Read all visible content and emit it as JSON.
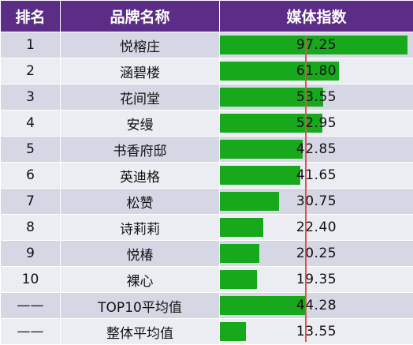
{
  "chart_data": {
    "type": "table",
    "columns": [
      "排名",
      "品牌名称",
      "媒体指数"
    ],
    "rows": [
      {
        "rank": "1",
        "brand": "悦榕庄",
        "value": 97.25,
        "label": "97.25"
      },
      {
        "rank": "2",
        "brand": "涵碧楼",
        "value": 61.8,
        "label": "61.80"
      },
      {
        "rank": "3",
        "brand": "花间堂",
        "value": 53.55,
        "label": "53.55"
      },
      {
        "rank": "4",
        "brand": "安缦",
        "value": 52.95,
        "label": "52.95"
      },
      {
        "rank": "5",
        "brand": "书香府邸",
        "value": 42.85,
        "label": "42.85"
      },
      {
        "rank": "6",
        "brand": "英迪格",
        "value": 41.65,
        "label": "41.65"
      },
      {
        "rank": "7",
        "brand": "松赞",
        "value": 30.75,
        "label": "30.75"
      },
      {
        "rank": "8",
        "brand": "诗莉莉",
        "value": 22.4,
        "label": "22.40"
      },
      {
        "rank": "9",
        "brand": "悦椿",
        "value": 20.25,
        "label": "20.25"
      },
      {
        "rank": "10",
        "brand": "裸心",
        "value": 19.35,
        "label": "19.35"
      },
      {
        "rank": "——",
        "brand": "TOP10平均值",
        "value": 44.28,
        "label": "44.28"
      },
      {
        "rank": "——",
        "brand": "整体平均值",
        "value": 13.55,
        "label": "13.55"
      }
    ],
    "bar_max": 100,
    "reference_value": 44.28,
    "colors": {
      "header_bg": "#5b2d86",
      "bar": "#17a81c",
      "row_odd": "#d6d7e5",
      "row_even": "#ecedf3",
      "reference_line": "#e05050"
    }
  }
}
